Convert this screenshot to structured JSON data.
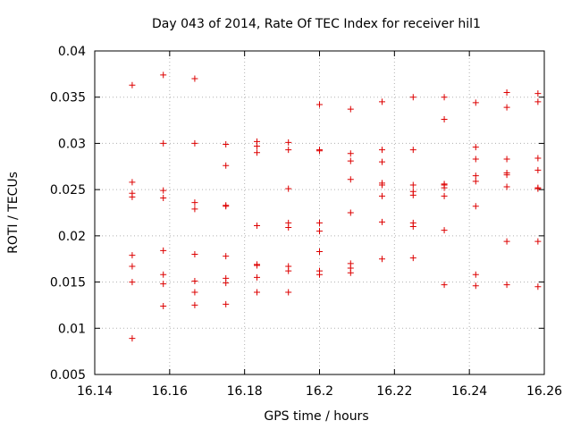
{
  "chart_data": {
    "type": "scatter",
    "title": "Day 043 of 2014, Rate Of TEC Index for receiver hil1",
    "xlabel": "GPS time / hours",
    "ylabel": "ROTI / TECUs",
    "xlim": [
      16.14,
      16.26
    ],
    "ylim": [
      0.005,
      0.04
    ],
    "grid": true,
    "marker": "plus",
    "color": "#dd0000",
    "xticks": [
      "16.14",
      "16.16",
      "16.18",
      "16.2",
      "16.22",
      "16.24",
      "16.26"
    ],
    "yticks": [
      "0.005",
      "0.01",
      "0.015",
      "0.02",
      "0.025",
      "0.03",
      "0.035",
      "0.04"
    ],
    "points": [
      [
        16.15,
        0.0363
      ],
      [
        16.15,
        0.0258
      ],
      [
        16.15,
        0.0246
      ],
      [
        16.15,
        0.0242
      ],
      [
        16.15,
        0.0179
      ],
      [
        16.15,
        0.0167
      ],
      [
        16.15,
        0.015
      ],
      [
        16.15,
        0.0089
      ],
      [
        16.1583,
        0.0374
      ],
      [
        16.1583,
        0.03
      ],
      [
        16.1583,
        0.0249
      ],
      [
        16.1583,
        0.0241
      ],
      [
        16.1583,
        0.0184
      ],
      [
        16.1583,
        0.0158
      ],
      [
        16.1583,
        0.0148
      ],
      [
        16.1583,
        0.0124
      ],
      [
        16.1667,
        0.037
      ],
      [
        16.1667,
        0.03
      ],
      [
        16.1667,
        0.0236
      ],
      [
        16.1667,
        0.0229
      ],
      [
        16.1667,
        0.018
      ],
      [
        16.1667,
        0.0151
      ],
      [
        16.1667,
        0.0139
      ],
      [
        16.1667,
        0.0125
      ],
      [
        16.175,
        0.0299
      ],
      [
        16.175,
        0.0276
      ],
      [
        16.175,
        0.0233
      ],
      [
        16.175,
        0.0232
      ],
      [
        16.175,
        0.0178
      ],
      [
        16.175,
        0.0154
      ],
      [
        16.175,
        0.0149
      ],
      [
        16.175,
        0.0126
      ],
      [
        16.1833,
        0.0302
      ],
      [
        16.1833,
        0.0297
      ],
      [
        16.1833,
        0.029
      ],
      [
        16.1833,
        0.0211
      ],
      [
        16.1833,
        0.0169
      ],
      [
        16.1833,
        0.0168
      ],
      [
        16.1833,
        0.0155
      ],
      [
        16.1833,
        0.0139
      ],
      [
        16.1917,
        0.0301
      ],
      [
        16.1917,
        0.0293
      ],
      [
        16.1917,
        0.0251
      ],
      [
        16.1917,
        0.0214
      ],
      [
        16.1917,
        0.0209
      ],
      [
        16.1917,
        0.0167
      ],
      [
        16.1917,
        0.0162
      ],
      [
        16.1917,
        0.0139
      ],
      [
        16.2,
        0.0342
      ],
      [
        16.2,
        0.0293
      ],
      [
        16.2,
        0.0292
      ],
      [
        16.2,
        0.0214
      ],
      [
        16.2,
        0.0205
      ],
      [
        16.2,
        0.0183
      ],
      [
        16.2,
        0.0162
      ],
      [
        16.2,
        0.0158
      ],
      [
        16.2083,
        0.0337
      ],
      [
        16.2083,
        0.0289
      ],
      [
        16.2083,
        0.0281
      ],
      [
        16.2083,
        0.0261
      ],
      [
        16.2083,
        0.0225
      ],
      [
        16.2083,
        0.017
      ],
      [
        16.2083,
        0.0165
      ],
      [
        16.2083,
        0.016
      ],
      [
        16.2167,
        0.0345
      ],
      [
        16.2167,
        0.0293
      ],
      [
        16.2167,
        0.028
      ],
      [
        16.2167,
        0.0257
      ],
      [
        16.2167,
        0.0255
      ],
      [
        16.2167,
        0.0243
      ],
      [
        16.2167,
        0.0215
      ],
      [
        16.2167,
        0.0175
      ],
      [
        16.225,
        0.035
      ],
      [
        16.225,
        0.0293
      ],
      [
        16.225,
        0.0255
      ],
      [
        16.225,
        0.0248
      ],
      [
        16.225,
        0.0244
      ],
      [
        16.225,
        0.0214
      ],
      [
        16.225,
        0.021
      ],
      [
        16.225,
        0.0176
      ],
      [
        16.2333,
        0.035
      ],
      [
        16.2333,
        0.0326
      ],
      [
        16.2333,
        0.0256
      ],
      [
        16.2333,
        0.0255
      ],
      [
        16.2333,
        0.0252
      ],
      [
        16.2333,
        0.0243
      ],
      [
        16.2333,
        0.0206
      ],
      [
        16.2333,
        0.0147
      ],
      [
        16.2417,
        0.0344
      ],
      [
        16.2417,
        0.0296
      ],
      [
        16.2417,
        0.0283
      ],
      [
        16.2417,
        0.0265
      ],
      [
        16.2417,
        0.0259
      ],
      [
        16.2417,
        0.0232
      ],
      [
        16.2417,
        0.0158
      ],
      [
        16.2417,
        0.0146
      ],
      [
        16.25,
        0.0355
      ],
      [
        16.25,
        0.0339
      ],
      [
        16.25,
        0.0283
      ],
      [
        16.25,
        0.0268
      ],
      [
        16.25,
        0.0266
      ],
      [
        16.25,
        0.0253
      ],
      [
        16.25,
        0.0194
      ],
      [
        16.25,
        0.0147
      ],
      [
        16.2583,
        0.0354
      ],
      [
        16.2583,
        0.0345
      ],
      [
        16.2583,
        0.0284
      ],
      [
        16.2583,
        0.0271
      ],
      [
        16.2583,
        0.0252
      ],
      [
        16.2583,
        0.0251
      ],
      [
        16.2583,
        0.0194
      ],
      [
        16.2583,
        0.0145
      ]
    ]
  }
}
